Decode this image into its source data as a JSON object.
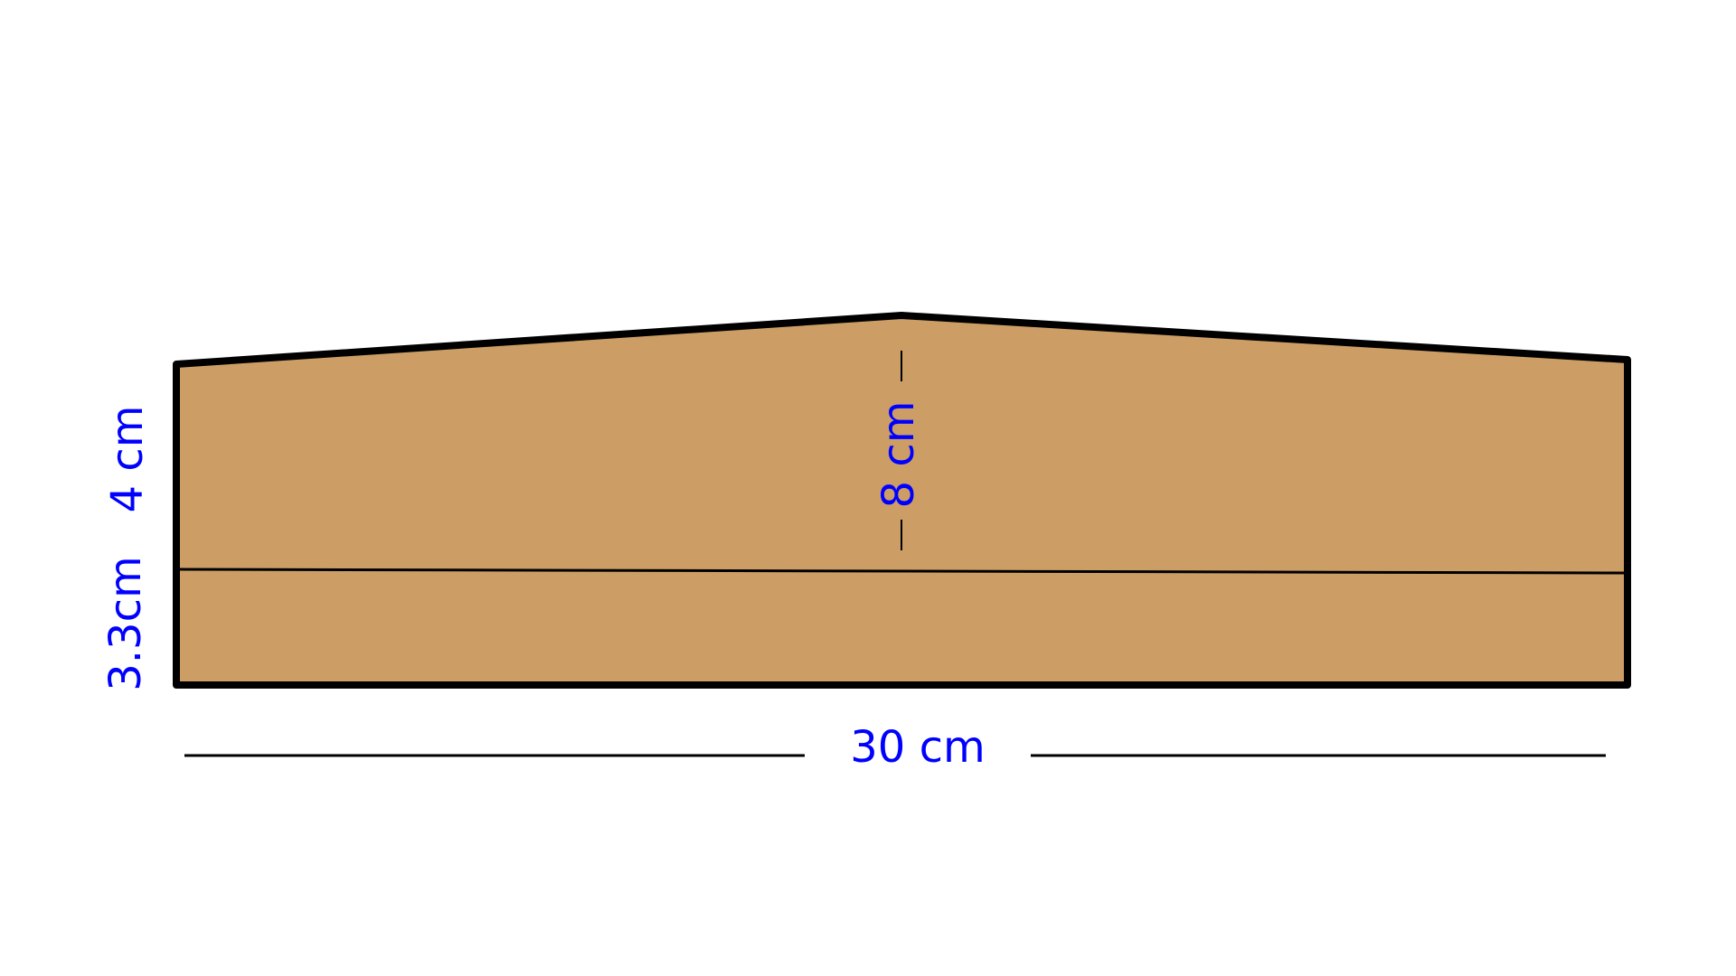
{
  "colors": {
    "fill": "#cc9e66",
    "outline": "#000000",
    "label": "#0000ff",
    "background": "#ffffff"
  },
  "labels": {
    "left_upper": "4 cm",
    "left_lower": "3.3cm",
    "center_height": "8 cm",
    "bottom_width": "30 cm"
  }
}
